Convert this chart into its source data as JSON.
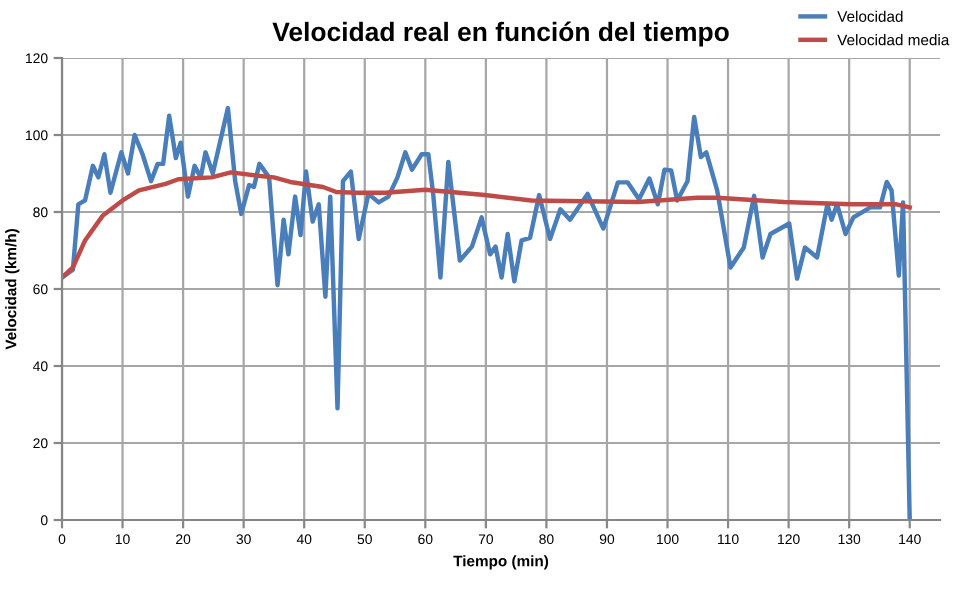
{
  "chart_data": {
    "type": "line",
    "title": "Velocidad real en función del tiempo",
    "xlabel": "Tiempo (min)",
    "ylabel": "Velocidad (km/h)",
    "xlim": [
      0,
      145
    ],
    "xticks": [
      0,
      10,
      20,
      30,
      40,
      50,
      60,
      70,
      80,
      90,
      100,
      110,
      120,
      130,
      140
    ],
    "ylim": [
      0,
      120
    ],
    "yticks": [
      0,
      20,
      40,
      60,
      80,
      100,
      120
    ],
    "grid": true,
    "legend": "top right",
    "marker": "none",
    "line_style": "solid",
    "series": [
      {
        "name": "Velocidad",
        "color": "#4a7ebb",
        "x": [
          0,
          1.8,
          2.7,
          3.8,
          5.1,
          6,
          7,
          8,
          9.8,
          10.9,
          12,
          13.3,
          14.7,
          15.8,
          16.7,
          17.7,
          18.8,
          19.6,
          20.8,
          21.9,
          22.9,
          23.7,
          24.9,
          27.4,
          28.6,
          29.6,
          30.9,
          31.7,
          32.6,
          34.2,
          35.6,
          36.6,
          37.4,
          38.5,
          39.4,
          40.3,
          41.4,
          42.4,
          43.5,
          44.3,
          45.5,
          46.4,
          47.7,
          49,
          50.6,
          52.3,
          53.9,
          55.4,
          56.7,
          57.8,
          59.4,
          60.5,
          61.3,
          62.5,
          63.8,
          65.7,
          67.7,
          69.3,
          70.7,
          71.6,
          72.6,
          73.6,
          74.7,
          75.9,
          77.3,
          78.8,
          80.6,
          82.3,
          83.9,
          86.8,
          89.4,
          91.8,
          93.4,
          95.3,
          97,
          98.4,
          99.5,
          100.6,
          101.6,
          103.3,
          104.4,
          105.5,
          106.4,
          108.2,
          110.4,
          112.6,
          114.3,
          115.7,
          117,
          120.1,
          121.4,
          122.7,
          124.7,
          126.4,
          127.1,
          128,
          129.4,
          130.7,
          133.5,
          135.1,
          136.2,
          137,
          138.2,
          138.9,
          140
        ],
        "values": [
          63,
          65,
          82,
          83,
          92,
          89,
          95,
          85,
          95.5,
          90,
          100,
          95,
          88,
          92.5,
          92.5,
          105,
          94,
          98,
          84,
          92,
          89,
          95.5,
          90,
          107,
          88,
          79.5,
          87,
          86.5,
          92.5,
          89,
          61,
          78,
          69,
          84,
          74,
          90.5,
          77.5,
          82,
          58,
          84,
          29,
          88,
          90.5,
          73,
          84.7,
          82.5,
          84,
          89,
          95.5,
          91,
          95,
          95,
          84.7,
          63,
          93,
          67.4,
          71,
          78.6,
          69,
          71,
          63,
          74.3,
          62,
          72.6,
          73.3,
          84.4,
          73,
          80.7,
          78,
          84.7,
          75.7,
          87.7,
          87.7,
          83.3,
          88.7,
          82,
          91,
          90.8,
          83,
          88,
          104.7,
          94.3,
          95.5,
          85.6,
          65.6,
          70.8,
          84.2,
          68.2,
          74.3,
          77,
          62.7,
          70.8,
          68.2,
          82,
          78,
          82,
          74.3,
          78.6,
          81.2,
          81.2,
          87.8,
          85.6,
          63.5,
          82.5,
          0
        ]
      },
      {
        "name": "Velocidad media",
        "color": "#be4b48",
        "x": [
          0,
          1.8,
          3.8,
          6.7,
          10,
          12.7,
          17.1,
          19.2,
          24.7,
          27.9,
          32.3,
          35,
          37.7,
          43.1,
          45.3,
          48.6,
          53.4,
          60,
          69.8,
          77.5,
          95.1,
          104.9,
          108.2,
          119.2,
          130.2,
          137.8,
          140
        ],
        "values": [
          63,
          65.6,
          72.6,
          79,
          83,
          85.6,
          87.3,
          88.5,
          89,
          90.3,
          89.4,
          89,
          87.8,
          86.5,
          85.2,
          85,
          85,
          85.8,
          84.4,
          83,
          82.6,
          83.7,
          83.7,
          82.6,
          82,
          82,
          81.2
        ]
      }
    ]
  }
}
